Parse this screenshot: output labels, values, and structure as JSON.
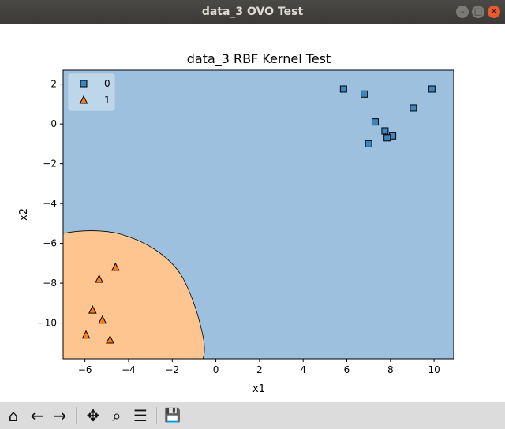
{
  "window": {
    "title": "data_3 OVO Test",
    "buttons": {
      "minimize": "–",
      "maximize": "□",
      "close": "✕"
    }
  },
  "toolbar": {
    "icons": [
      "home-icon",
      "back-arrow-icon",
      "forward-arrow-icon",
      "pan-icon",
      "zoom-icon",
      "configure-subplots-icon",
      "save-icon"
    ],
    "glyphs": {
      "home": "⌂",
      "back": "←",
      "forward": "→",
      "pan": "✥",
      "zoom": "⌕",
      "configure": "☰",
      "save": "💾"
    }
  },
  "colors": {
    "class0_region": "#9cc0de",
    "class1_region": "#fec591",
    "class0_marker": "#3a86bf",
    "class1_marker": "#ff7f0e"
  },
  "chart_data": {
    "type": "scatter",
    "title": "data_3 RBF Kernel Test",
    "xlabel": "x1",
    "ylabel": "x2",
    "xlim": [
      -7,
      10.9
    ],
    "ylim": [
      -11.8,
      2.7
    ],
    "xticks": [
      -6,
      -4,
      -2,
      0,
      2,
      4,
      6,
      8,
      10
    ],
    "yticks": [
      2,
      0,
      -2,
      -4,
      -6,
      -8,
      -10
    ],
    "legend": {
      "placement": "top-left",
      "entries": [
        "0",
        "1"
      ]
    },
    "decision_regions": "class 1 region in the bottom-left corner, class 0 elsewhere",
    "series": [
      {
        "name": "0",
        "marker": "square",
        "x": [
          5.85,
          6.8,
          9.9,
          9.05,
          7.3,
          7.75,
          8.1,
          7.85,
          7.0
        ],
        "y": [
          1.75,
          1.5,
          1.75,
          0.8,
          0.1,
          -0.35,
          -0.6,
          -0.7,
          -1.0
        ]
      },
      {
        "name": "1",
        "marker": "triangle",
        "x": [
          -4.6,
          -5.35,
          -5.65,
          -5.2,
          -5.95,
          -4.85
        ],
        "y": [
          -7.2,
          -7.8,
          -9.35,
          -9.85,
          -10.6,
          -10.85
        ]
      }
    ]
  }
}
